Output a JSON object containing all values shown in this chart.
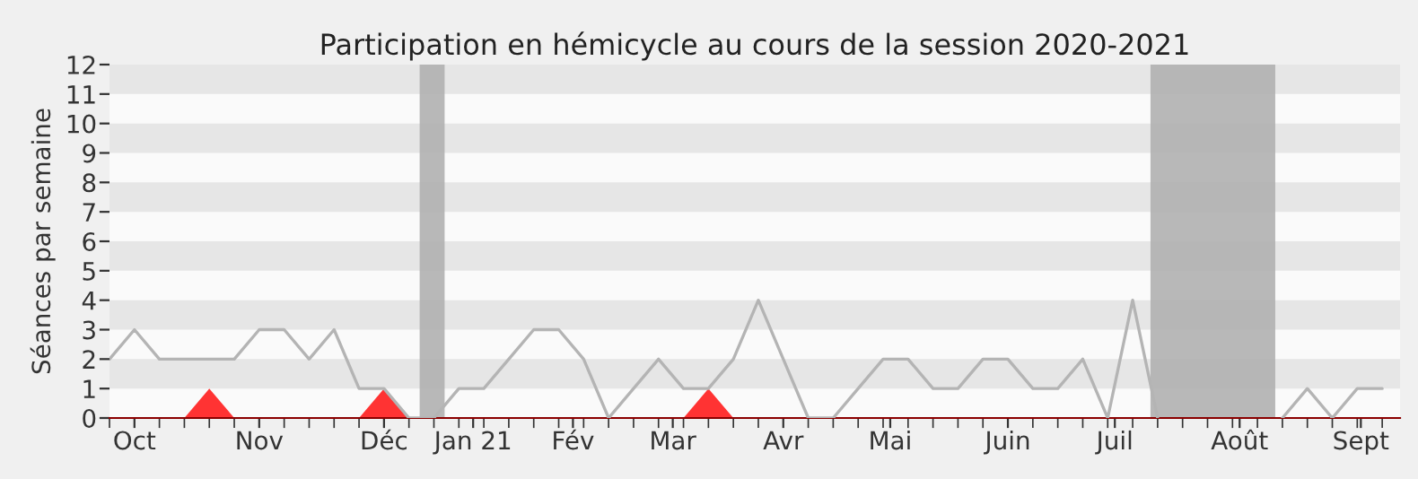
{
  "chart_data": {
    "type": "line",
    "title": "Participation en hémicycle au cours de la session 2020-2021",
    "ylabel": "Séances par semaine",
    "x": [
      "2020-09-24",
      "2020-10-01",
      "2020-10-08",
      "2020-10-15",
      "2020-10-22",
      "2020-10-29",
      "2020-11-05",
      "2020-11-12",
      "2020-11-19",
      "2020-11-26",
      "2020-12-03",
      "2020-12-10",
      "2020-12-17",
      "2020-12-24",
      "2020-12-31",
      "2021-01-07",
      "2021-01-14",
      "2021-01-21",
      "2021-01-28",
      "2021-02-04",
      "2021-02-11",
      "2021-02-18",
      "2021-02-25",
      "2021-03-04",
      "2021-03-11",
      "2021-03-18",
      "2021-03-25",
      "2021-04-01",
      "2021-04-08",
      "2021-04-15",
      "2021-04-22",
      "2021-04-29",
      "2021-05-06",
      "2021-05-13",
      "2021-05-20",
      "2021-05-27",
      "2021-06-03",
      "2021-06-10",
      "2021-06-17",
      "2021-06-24",
      "2021-07-01",
      "2021-07-08",
      "2021-07-15",
      "2021-07-22",
      "2021-07-29",
      "2021-08-05",
      "2021-08-12",
      "2021-08-19",
      "2021-08-26",
      "2021-09-02",
      "2021-09-09",
      "2021-09-16"
    ],
    "series": [
      {
        "color": "#b4b4b4",
        "values": [
          2,
          3,
          2,
          2,
          2,
          2,
          3,
          3,
          2,
          3,
          1,
          1,
          0,
          0,
          1,
          1,
          2,
          3,
          3,
          2,
          0,
          1,
          2,
          1,
          1,
          2,
          4,
          2,
          0,
          0,
          1,
          2,
          2,
          1,
          1,
          2,
          2,
          1,
          1,
          2,
          0,
          4,
          0,
          null,
          null,
          null,
          null,
          0,
          1,
          0,
          1,
          1
        ]
      },
      {
        "type": "area",
        "color": "#ff3333",
        "x": [
          "2020-10-15",
          "2020-10-22",
          "2020-10-29"
        ],
        "values": [
          0,
          1,
          0
        ]
      },
      {
        "type": "area",
        "color": "#ff3333",
        "x": [
          "2020-12-03",
          "2020-12-10",
          "2020-12-17"
        ],
        "values": [
          0,
          1,
          0
        ]
      },
      {
        "type": "area",
        "color": "#ff3333",
        "x": [
          "2021-03-04",
          "2021-03-11",
          "2021-03-18"
        ],
        "values": [
          0,
          1,
          0
        ]
      }
    ],
    "xlim": [
      "2020-09-24",
      "2021-09-21"
    ],
    "ylim": [
      0,
      12
    ],
    "yticks": [
      0,
      1,
      2,
      3,
      4,
      5,
      6,
      7,
      8,
      9,
      10,
      11,
      12
    ],
    "xticks": [
      {
        "value": "2020-10-01",
        "label": "Oct"
      },
      {
        "value": "2020-11-05",
        "label": "Nov"
      },
      {
        "value": "2020-12-10",
        "label": "Déc"
      },
      {
        "value": "2021-01-04",
        "label": "Jan 21"
      },
      {
        "value": "2021-02-01",
        "label": "Fév"
      },
      {
        "value": "2021-03-01",
        "label": "Mar"
      },
      {
        "value": "2021-04-01",
        "label": "Avr"
      },
      {
        "value": "2021-05-01",
        "label": "Mai"
      },
      {
        "value": "2021-06-03",
        "label": "Juin"
      },
      {
        "value": "2021-07-03",
        "label": "Juil"
      },
      {
        "value": "2021-08-07",
        "label": "Août"
      },
      {
        "value": "2021-09-10",
        "label": "Sept"
      }
    ],
    "bands": [
      {
        "axis": "x",
        "from": "2020-12-20",
        "to": "2020-12-27",
        "color": "#b0b0b0"
      },
      {
        "axis": "x",
        "from": "2021-07-13",
        "to": "2021-08-17",
        "color": "#b0b0b0"
      }
    ],
    "marker": "none",
    "line_style": "solid"
  }
}
